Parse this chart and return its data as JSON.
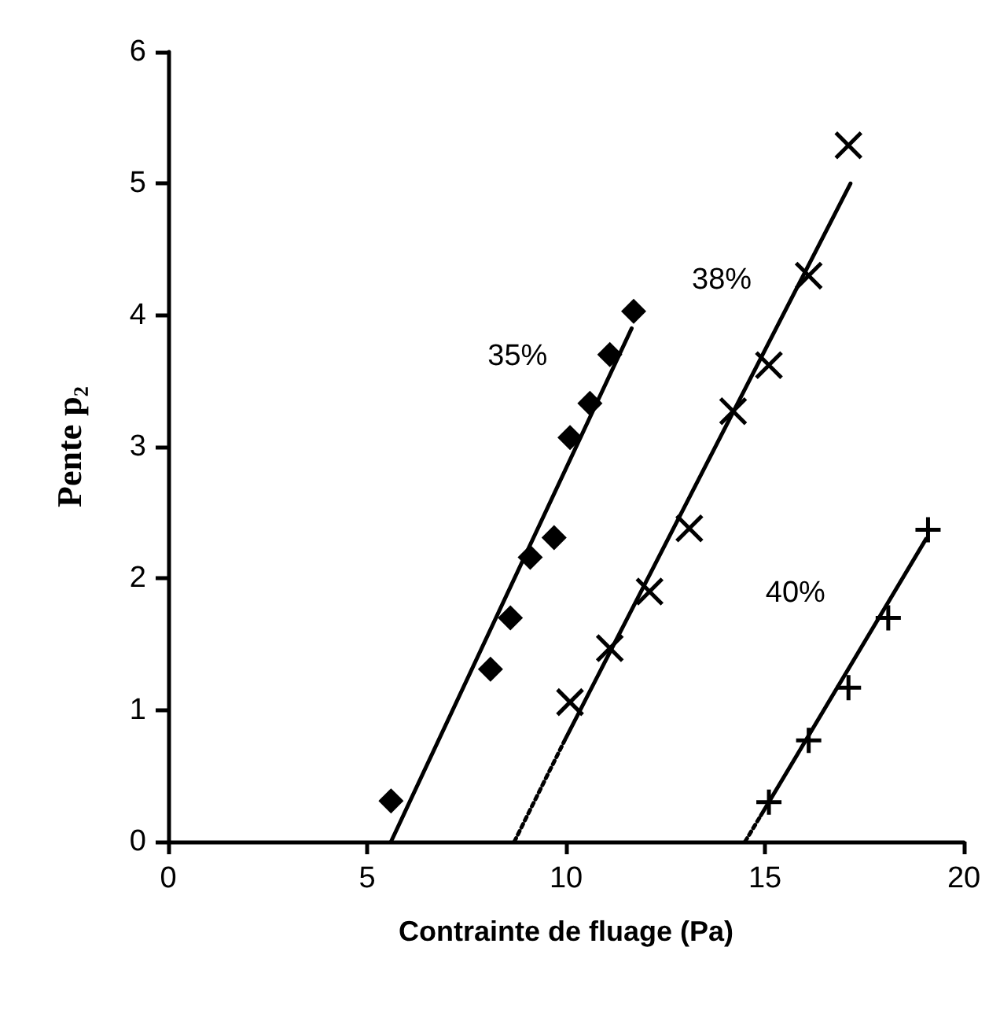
{
  "chart_data": {
    "type": "scatter",
    "xlabel": "Contrainte de fluage (Pa)",
    "ylabel": "Pente p₂",
    "xlim": [
      0,
      20
    ],
    "xticks": [
      0,
      5,
      10,
      15,
      20
    ],
    "ylim": [
      0,
      6
    ],
    "yticks": [
      0,
      1,
      2,
      3,
      4,
      5,
      6
    ],
    "grid": false,
    "legend": false,
    "series": [
      {
        "name": "35%",
        "color": "#000000",
        "marker": "diamond",
        "x": [
          5.6,
          8.1,
          8.6,
          9.1,
          9.7,
          10.1,
          10.6,
          11.1,
          11.7
        ],
        "values": [
          0.31,
          1.31,
          1.7,
          2.16,
          2.31,
          3.07,
          3.33,
          3.7,
          4.03
        ]
      },
      {
        "name": "38%",
        "color": "#000000",
        "marker": "x",
        "x": [
          10.1,
          11.1,
          12.1,
          13.1,
          14.2,
          15.1,
          16.1,
          17.1
        ],
        "values": [
          1.06,
          1.47,
          1.9,
          2.38,
          3.27,
          3.62,
          4.3,
          5.29
        ]
      },
      {
        "name": "40%",
        "color": "#000000",
        "marker": "cross",
        "x": [
          15.1,
          16.1,
          17.1,
          18.1,
          19.1
        ],
        "values": [
          0.3,
          0.77,
          1.17,
          1.7,
          2.37
        ]
      },
      {
        "type": "line",
        "color": "#000000",
        "marker": "none",
        "line_style": "solid",
        "x": [
          5.6,
          11.65
        ],
        "values": [
          0,
          3.9
        ]
      },
      {
        "type": "line",
        "color": "#000000",
        "marker": "none",
        "line_style": "dotted",
        "x": [
          8.7,
          10.0
        ],
        "values": [
          0,
          0.79
        ]
      },
      {
        "type": "line",
        "color": "#000000",
        "marker": "none",
        "line_style": "solid",
        "x": [
          10.0,
          17.15
        ],
        "values": [
          0.79,
          5.0
        ]
      },
      {
        "type": "line",
        "color": "#000000",
        "marker": "none",
        "line_style": "dotted",
        "x": [
          14.5,
          14.9
        ],
        "values": [
          0,
          0.2
        ]
      },
      {
        "type": "line",
        "color": "#000000",
        "marker": "none",
        "line_style": "solid",
        "x": [
          14.9,
          19.05
        ],
        "values": [
          0.2,
          2.3
        ]
      }
    ]
  }
}
